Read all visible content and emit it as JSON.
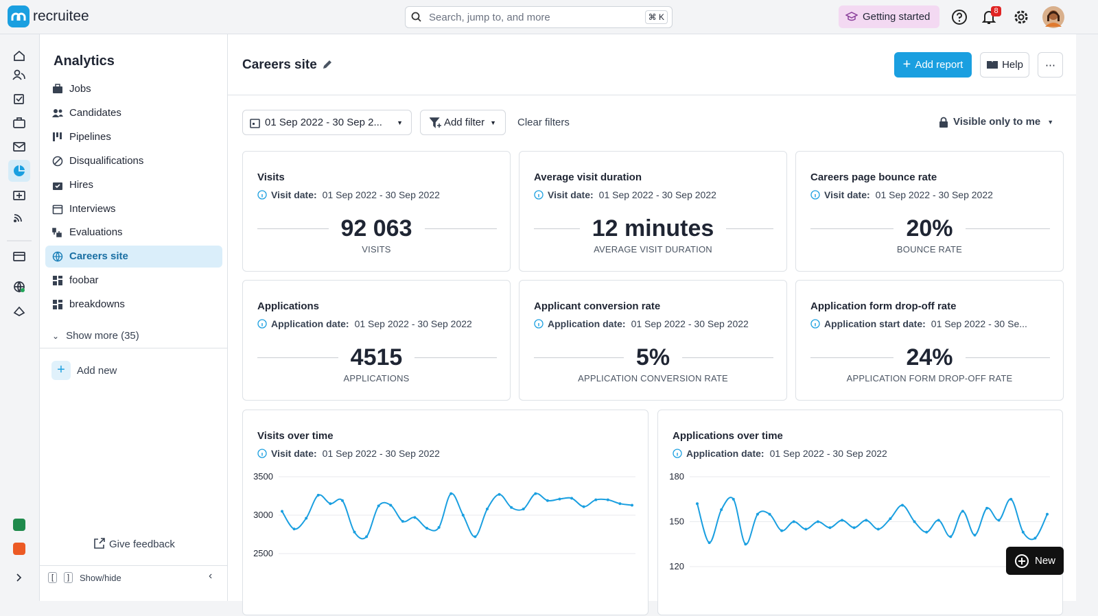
{
  "header": {
    "logo": "recruitee",
    "search_placeholder": "Search, jump to, and more",
    "search_shortcut": "⌘ K",
    "getting_started": "Getting started",
    "notification_count": "8"
  },
  "sidebar": {
    "title": "Analytics",
    "items": [
      "Jobs",
      "Candidates",
      "Pipelines",
      "Disqualifications",
      "Hires",
      "Interviews",
      "Evaluations",
      "Careers site",
      "foobar",
      "breakdowns"
    ],
    "active_item": "Careers site",
    "show_more": "Show more (35)",
    "add_new": "Add new",
    "give_feedback": "Give feedback",
    "show_hide": "Show/hide"
  },
  "main": {
    "title": "Careers site",
    "add_report": "Add report",
    "help": "Help",
    "filters": {
      "date_range": "01 Sep 2022 - 30 Sep 2...",
      "add_filter": "Add filter",
      "clear_filters": "Clear filters",
      "visibility": "Visible only to me"
    }
  },
  "kpis": [
    {
      "title": "Visits",
      "filter_label": "Visit date:",
      "filter_value": "01 Sep 2022 - 30 Sep 2022",
      "value": "92 063",
      "unit": "VISITS"
    },
    {
      "title": "Average visit duration",
      "filter_label": "Visit date:",
      "filter_value": "01 Sep 2022 - 30 Sep 2022",
      "value": "12 minutes",
      "unit": "AVERAGE VISIT DURATION"
    },
    {
      "title": "Careers page bounce rate",
      "filter_label": "Visit date:",
      "filter_value": "01 Sep 2022 - 30 Sep 2022",
      "value": "20%",
      "unit": "BOUNCE RATE"
    },
    {
      "title": "Applications",
      "filter_label": "Application date:",
      "filter_value": "01 Sep 2022 - 30 Sep 2022",
      "value": "4515",
      "unit": "APPLICATIONS"
    },
    {
      "title": "Applicant conversion rate",
      "filter_label": "Application date:",
      "filter_value": "01 Sep 2022 - 30 Sep 2022",
      "value": "5%",
      "unit": "APPLICATION CONVERSION RATE"
    },
    {
      "title": "Application form drop-off rate",
      "filter_label": "Application start date:",
      "filter_value": "01 Sep 2022 - 30 Se...",
      "value": "24%",
      "unit": "APPLICATION FORM DROP-OFF RATE"
    }
  ],
  "charts": [
    {
      "type": "line",
      "title": "Visits over time",
      "filter_label": "Visit date:",
      "filter_value": "01 Sep 2022 - 30 Sep 2022",
      "color": "#1a9fe0",
      "ylim": [
        2500,
        3500
      ],
      "yticks": [
        2500,
        3000,
        3500
      ],
      "grid": true,
      "values": [
        3050,
        2820,
        2960,
        3260,
        3150,
        3190,
        2780,
        2720,
        3120,
        3130,
        2920,
        2970,
        2830,
        2840,
        3280,
        3000,
        2720,
        3080,
        3270,
        3100,
        3080,
        3280,
        3190,
        3210,
        3220,
        3110,
        3200,
        3200,
        3150,
        3130
      ]
    },
    {
      "type": "line",
      "title": "Applications over time",
      "filter_label": "Application date:",
      "filter_value": "01 Sep 2022 - 30 Sep 2022",
      "color": "#1a9fe0",
      "ylim": [
        120,
        180
      ],
      "yticks": [
        120,
        150,
        180
      ],
      "grid": true,
      "values": [
        162,
        136,
        158,
        165,
        135,
        155,
        155,
        144,
        150,
        145,
        150,
        146,
        151,
        146,
        151,
        145,
        152,
        161,
        150,
        143,
        151,
        140,
        157,
        141,
        159,
        151,
        165,
        143,
        139,
        155
      ]
    }
  ],
  "new_button": "New"
}
